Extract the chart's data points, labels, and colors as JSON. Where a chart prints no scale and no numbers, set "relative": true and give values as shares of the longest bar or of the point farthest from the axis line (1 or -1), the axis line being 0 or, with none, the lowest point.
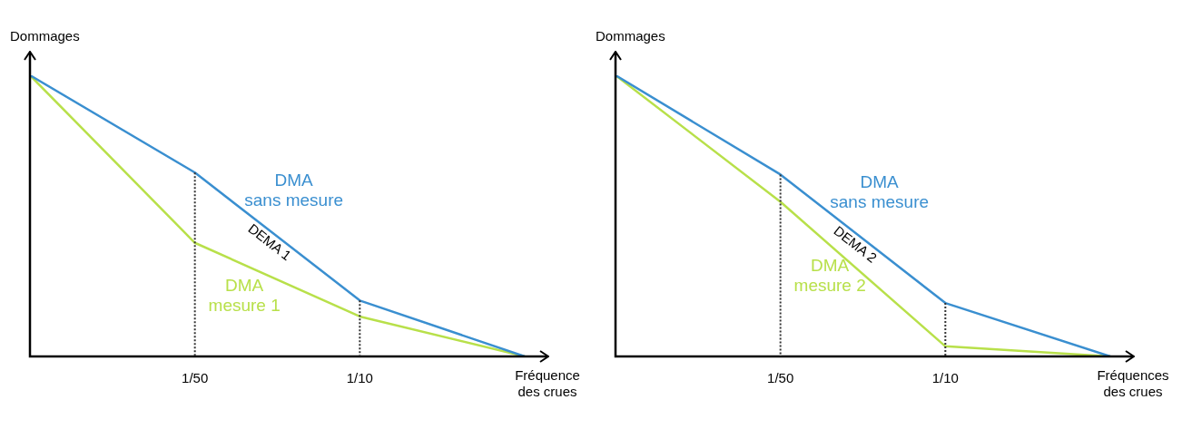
{
  "chart_data": [
    {
      "type": "line",
      "relative": true,
      "xlabel": "Fréquence des crues",
      "ylabel": "Dommages",
      "categories": [
        null,
        "1/50",
        "1/10",
        null
      ],
      "tick_labels": "x",
      "grid": false,
      "legend": false,
      "marker": "none",
      "annotations": [
        "DEMA 1"
      ],
      "ref_lines": [
        {
          "axis": "x",
          "value": "1/50",
          "line_style": "dotted",
          "color": "#333333"
        },
        {
          "axis": "x",
          "value": "1/10",
          "line_style": "dotted",
          "color": "#333333"
        }
      ],
      "series": [
        {
          "name": "DMA sans mesure",
          "color": "#3a8fd0",
          "values": [
            1,
            0.654,
            0.199,
            0
          ]
        },
        {
          "name": "DMA mesure 1",
          "color": "#b8e04a",
          "values": [
            1,
            0.404,
            0.142,
            0
          ]
        }
      ]
    },
    {
      "type": "line",
      "relative": true,
      "xlabel": "Fréquences des crues",
      "ylabel": "Dommages",
      "categories": [
        null,
        "1/50",
        "1/10",
        null
      ],
      "tick_labels": "x",
      "grid": false,
      "legend": false,
      "marker": "none",
      "annotations": [
        "DEMA 2"
      ],
      "ref_lines": [
        {
          "axis": "x",
          "value": "1/50",
          "line_style": "dotted",
          "color": "#333333"
        },
        {
          "axis": "x",
          "value": "1/10",
          "line_style": "dotted",
          "color": "#333333"
        }
      ],
      "series": [
        {
          "name": "DMA sans mesure",
          "color": "#3a8fd0",
          "values": [
            1,
            0.647,
            0.19,
            0
          ]
        },
        {
          "name": "DMA mesure 2",
          "color": "#b8e04a",
          "values": [
            1,
            0.55,
            0.036,
            0
          ]
        }
      ]
    }
  ]
}
